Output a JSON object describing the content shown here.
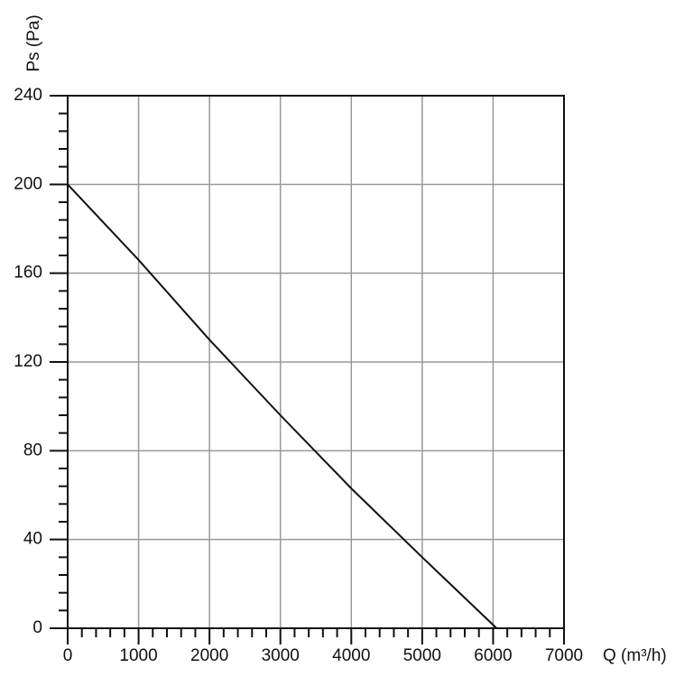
{
  "chart_data": {
    "type": "line",
    "x_label": "Q (m³/h)",
    "y_label": "Ps (Pa)",
    "x": [
      0,
      1000,
      2000,
      3000,
      4000,
      5000,
      6050
    ],
    "series": [
      {
        "name": "Ps",
        "color": "#111111",
        "values": [
          200,
          166,
          130,
          96,
          63,
          32,
          0
        ]
      }
    ],
    "xlim": [
      0,
      7000
    ],
    "xticks": [
      0,
      1000,
      2000,
      3000,
      4000,
      5000,
      6000,
      7000
    ],
    "ylim": [
      0,
      240
    ],
    "yticks": [
      0,
      40,
      80,
      120,
      160,
      200,
      240
    ],
    "grid": true,
    "minor_ticks_per_interval": 5
  }
}
